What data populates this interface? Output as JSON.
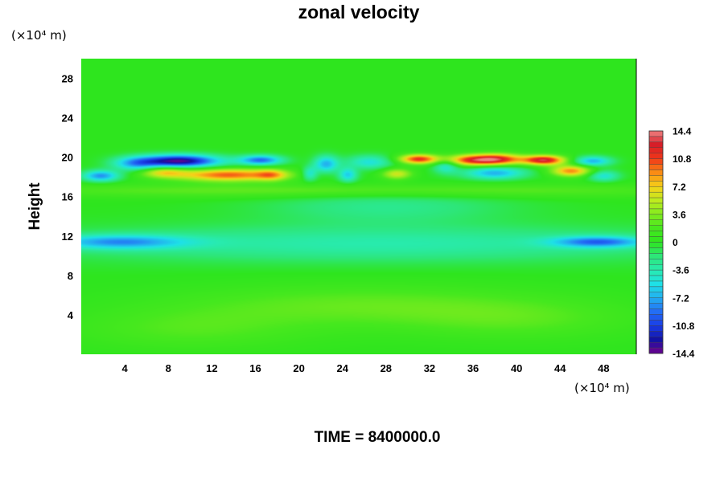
{
  "chart_data": {
    "type": "heatmap",
    "title": "zonal velocity",
    "ylabel": "Height",
    "x_unit_label": "(×10⁴ m)",
    "y_unit_label": "(×10⁴ m)",
    "xlim": [
      0,
      51
    ],
    "ylim": [
      0,
      30
    ],
    "x_ticks": [
      "4",
      "8",
      "12",
      "16",
      "20",
      "24",
      "28",
      "32",
      "36",
      "40",
      "44",
      "48"
    ],
    "y_ticks": [
      "4",
      "8",
      "12",
      "16",
      "20",
      "24",
      "28"
    ],
    "colorbar": {
      "min": -14.4,
      "max": 14.4,
      "tick_labels": [
        "14.4",
        "10.8",
        "7.2",
        "3.6",
        "0",
        "-3.6",
        "-7.2",
        "-10.8",
        "-14.4"
      ]
    },
    "features": [
      {
        "x": 9.0,
        "y": 19.6,
        "value": -14.0,
        "sx": 2.6,
        "sy": 0.45
      },
      {
        "x": 5.0,
        "y": 19.3,
        "value": -6.0,
        "sx": 1.5,
        "sy": 0.5
      },
      {
        "x": 16.5,
        "y": 19.7,
        "value": -9.0,
        "sx": 1.4,
        "sy": 0.35
      },
      {
        "x": 1.8,
        "y": 18.1,
        "value": -8.0,
        "sx": 1.2,
        "sy": 0.4
      },
      {
        "x": 13.5,
        "y": 18.2,
        "value": 10.0,
        "sx": 3.5,
        "sy": 0.45
      },
      {
        "x": 7.5,
        "y": 18.5,
        "value": 6.0,
        "sx": 1.5,
        "sy": 0.4
      },
      {
        "x": 17.5,
        "y": 18.2,
        "value": 5.0,
        "sx": 1.0,
        "sy": 0.4
      },
      {
        "x": 22.5,
        "y": 19.3,
        "value": -7.0,
        "sx": 0.8,
        "sy": 0.6
      },
      {
        "x": 24.5,
        "y": 18.2,
        "value": -6.0,
        "sx": 0.6,
        "sy": 0.5
      },
      {
        "x": 21.0,
        "y": 18.3,
        "value": -5.0,
        "sx": 0.5,
        "sy": 0.5
      },
      {
        "x": 26.5,
        "y": 19.5,
        "value": -5.0,
        "sx": 1.5,
        "sy": 0.5
      },
      {
        "x": 31.0,
        "y": 19.8,
        "value": 11.0,
        "sx": 1.3,
        "sy": 0.35
      },
      {
        "x": 33.5,
        "y": 19.1,
        "value": -5.0,
        "sx": 0.8,
        "sy": 0.5
      },
      {
        "x": 36.0,
        "y": 19.7,
        "value": 11.0,
        "sx": 1.8,
        "sy": 0.4
      },
      {
        "x": 38.5,
        "y": 19.8,
        "value": 9.0,
        "sx": 1.5,
        "sy": 0.4
      },
      {
        "x": 42.5,
        "y": 19.7,
        "value": 13.0,
        "sx": 1.4,
        "sy": 0.35
      },
      {
        "x": 45.0,
        "y": 18.6,
        "value": 9.0,
        "sx": 1.3,
        "sy": 0.4
      },
      {
        "x": 38.0,
        "y": 18.4,
        "value": -7.0,
        "sx": 2.0,
        "sy": 0.45
      },
      {
        "x": 47.0,
        "y": 19.6,
        "value": -7.0,
        "sx": 1.2,
        "sy": 0.35
      },
      {
        "x": 48.0,
        "y": 18.1,
        "value": -5.0,
        "sx": 1.0,
        "sy": 0.4
      },
      {
        "x": 29.0,
        "y": 18.3,
        "value": 6.0,
        "sx": 1.0,
        "sy": 0.4
      },
      {
        "x": 3.5,
        "y": 11.4,
        "value": -6.5,
        "sx": 4.5,
        "sy": 0.5
      },
      {
        "x": 47.5,
        "y": 11.4,
        "value": -7.5,
        "sx": 3.0,
        "sy": 0.4
      },
      {
        "x": 27.0,
        "y": 11.2,
        "value": -3.5,
        "sx": 22.0,
        "sy": 1.3
      },
      {
        "x": 28.0,
        "y": 15.0,
        "value": -2.5,
        "sx": 8.0,
        "sy": 1.2
      },
      {
        "x": 25.0,
        "y": 16.6,
        "value": 3.0,
        "sx": 25.0,
        "sy": 0.5
      },
      {
        "x": 25.0,
        "y": 5.0,
        "value": 2.5,
        "sx": 12.0,
        "sy": 1.5
      },
      {
        "x": 10.0,
        "y": 2.5,
        "value": 2.0,
        "sx": 8.0,
        "sy": 1.5
      },
      {
        "x": 40.0,
        "y": 3.5,
        "value": 2.0,
        "sx": 8.0,
        "sy": 1.5
      }
    ]
  },
  "footer": {
    "time_label": "TIME = 8400000.0"
  },
  "colors": {
    "background": "#ffffff",
    "text": "#000000",
    "field_base": "#2ee51e"
  }
}
